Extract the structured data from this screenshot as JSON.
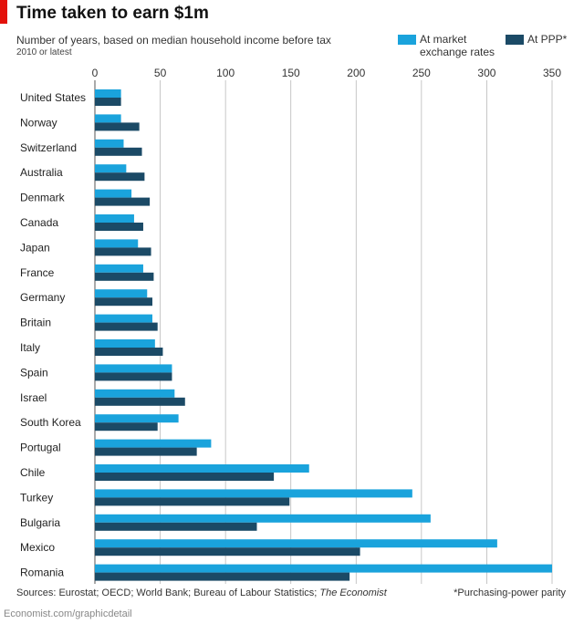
{
  "header": {
    "title": "Time taken to earn $1m",
    "subtitle": "Number of years, based on median household income before tax",
    "subtitle2": "2010 or latest"
  },
  "legend": {
    "market_label": "At market exchange rates",
    "market_line1": "At market",
    "market_line2": "exchange rates",
    "ppp_label": "At PPP*"
  },
  "footer": {
    "sources_prefix": "Sources: Eurostat; OECD; World Bank; Bureau of Labour Statistics; ",
    "sources_italic": "The Economist",
    "note": "*Purchasing-power parity",
    "url": "Economist.com/graphicdetail"
  },
  "colors": {
    "market": "#1aa3dc",
    "ppp": "#1b4a66",
    "grid": "#b9b9b9",
    "accent": "#e3120b"
  },
  "chart_data": {
    "type": "bar",
    "orientation": "horizontal",
    "title": "Time taken to earn $1m",
    "xlim": [
      0,
      350
    ],
    "xticks": [
      0,
      50,
      100,
      150,
      200,
      250,
      300,
      350
    ],
    "grid": true,
    "legend_position": "top-right",
    "categories": [
      "United States",
      "Norway",
      "Switzerland",
      "Australia",
      "Denmark",
      "Canada",
      "Japan",
      "France",
      "Germany",
      "Britain",
      "Italy",
      "Spain",
      "Israel",
      "South Korea",
      "Portugal",
      "Chile",
      "Turkey",
      "Bulgaria",
      "Mexico",
      "Romania"
    ],
    "series": [
      {
        "name": "At market exchange rates",
        "color": "#1aa3dc",
        "values": [
          20,
          20,
          22,
          24,
          28,
          30,
          33,
          37,
          40,
          44,
          46,
          59,
          61,
          64,
          89,
          164,
          243,
          257,
          308,
          350
        ]
      },
      {
        "name": "At PPP*",
        "color": "#1b4a66",
        "values": [
          20,
          34,
          36,
          38,
          42,
          37,
          43,
          45,
          44,
          48,
          52,
          59,
          69,
          48,
          78,
          137,
          149,
          124,
          203,
          195
        ]
      }
    ]
  }
}
